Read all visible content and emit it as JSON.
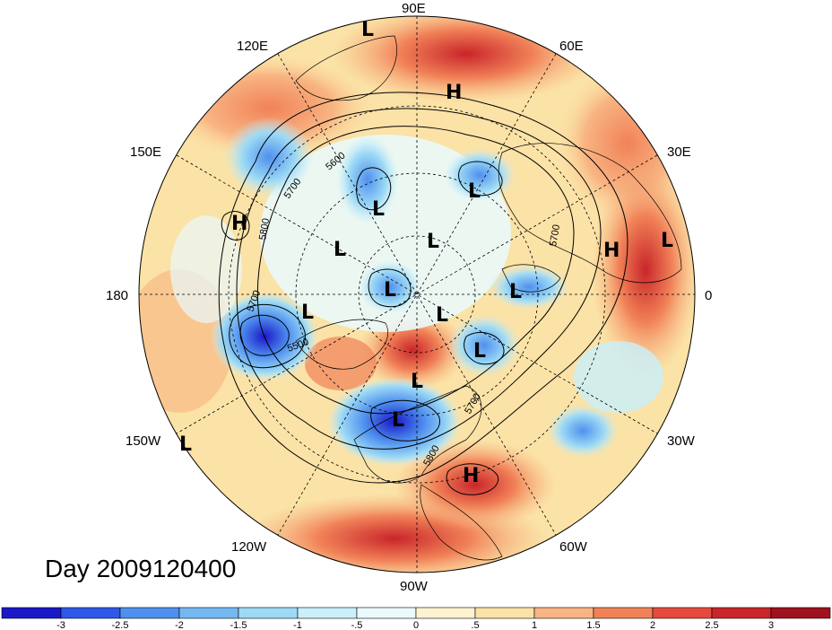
{
  "title": "Day 2009120400",
  "longitude_labels": [
    "90E",
    "120E",
    "60E",
    "150E",
    "30E",
    "180",
    "0",
    "150W",
    "30W",
    "120W",
    "60W",
    "90W"
  ],
  "pressure_systems": [
    "L",
    "H",
    "L",
    "H",
    "L",
    "L",
    "L",
    "H",
    "L",
    "L",
    "L",
    "L",
    "L",
    "L",
    "L",
    "L",
    "H",
    "L"
  ],
  "contour_labels": [
    "5600",
    "5700",
    "5800",
    "5700",
    "5500",
    "5700",
    "5800",
    "5700"
  ],
  "colorbar": {
    "ticks": [
      "-3",
      "-2.5",
      "-2",
      "-1.5",
      "-1",
      "-.5",
      "0",
      ".5",
      "1",
      "1.5",
      "2",
      "2.5",
      "3"
    ],
    "colors": [
      "#1a18c8",
      "#2f57e8",
      "#4f90ee",
      "#74b8f2",
      "#9ddaf6",
      "#c9f0fb",
      "#eaf9fb",
      "#fdf3d0",
      "#fbe2a6",
      "#f8b482",
      "#f18258",
      "#e64a3d",
      "#c9252a",
      "#a1121f"
    ]
  }
}
